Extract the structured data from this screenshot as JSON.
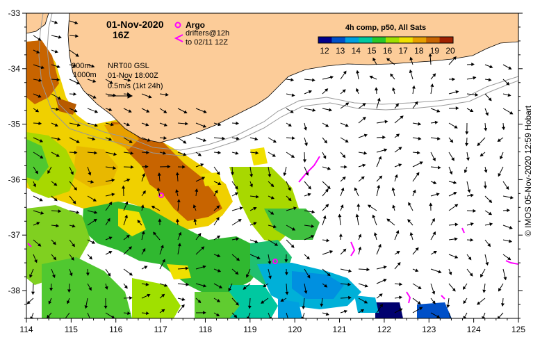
{
  "map": {
    "date": "01-Nov-2020",
    "hour": "16Z",
    "argo_label": "Argo",
    "drifters_label": "drifters@12h",
    "drifters_to": "to 02/11 12Z",
    "contour_200": "200m",
    "contour_1000": "1000m",
    "product": "NRT00 GSL",
    "product_time": "01-Nov 18:00Z",
    "scale_arrow": "0.5m/s (1kt 24h)",
    "colorbar_title": "4h comp, p50, All Sats",
    "colorbar_ticks": [
      "12",
      "13",
      "14",
      "15",
      "16",
      "17",
      "18",
      "19",
      "20"
    ],
    "credit": "© IMOS 05-Nov-2020 12:59 Hobart",
    "lon_ticks": [
      "114",
      "115",
      "116",
      "117",
      "118",
      "119",
      "120",
      "121",
      "122",
      "123",
      "124",
      "125"
    ],
    "lat_ticks": [
      "-33",
      "-34",
      "-35",
      "-36",
      "-37",
      "-38"
    ],
    "colors": {
      "land": "#fccc99",
      "argo": "#ff00ff",
      "drifter": "#ff00ff",
      "sst_scale": [
        "#00008b",
        "#0050c8",
        "#00a0e0",
        "#00c8a0",
        "#28c828",
        "#a0e000",
        "#f0e000",
        "#e8a000",
        "#c86400",
        "#a02000"
      ]
    }
  }
}
